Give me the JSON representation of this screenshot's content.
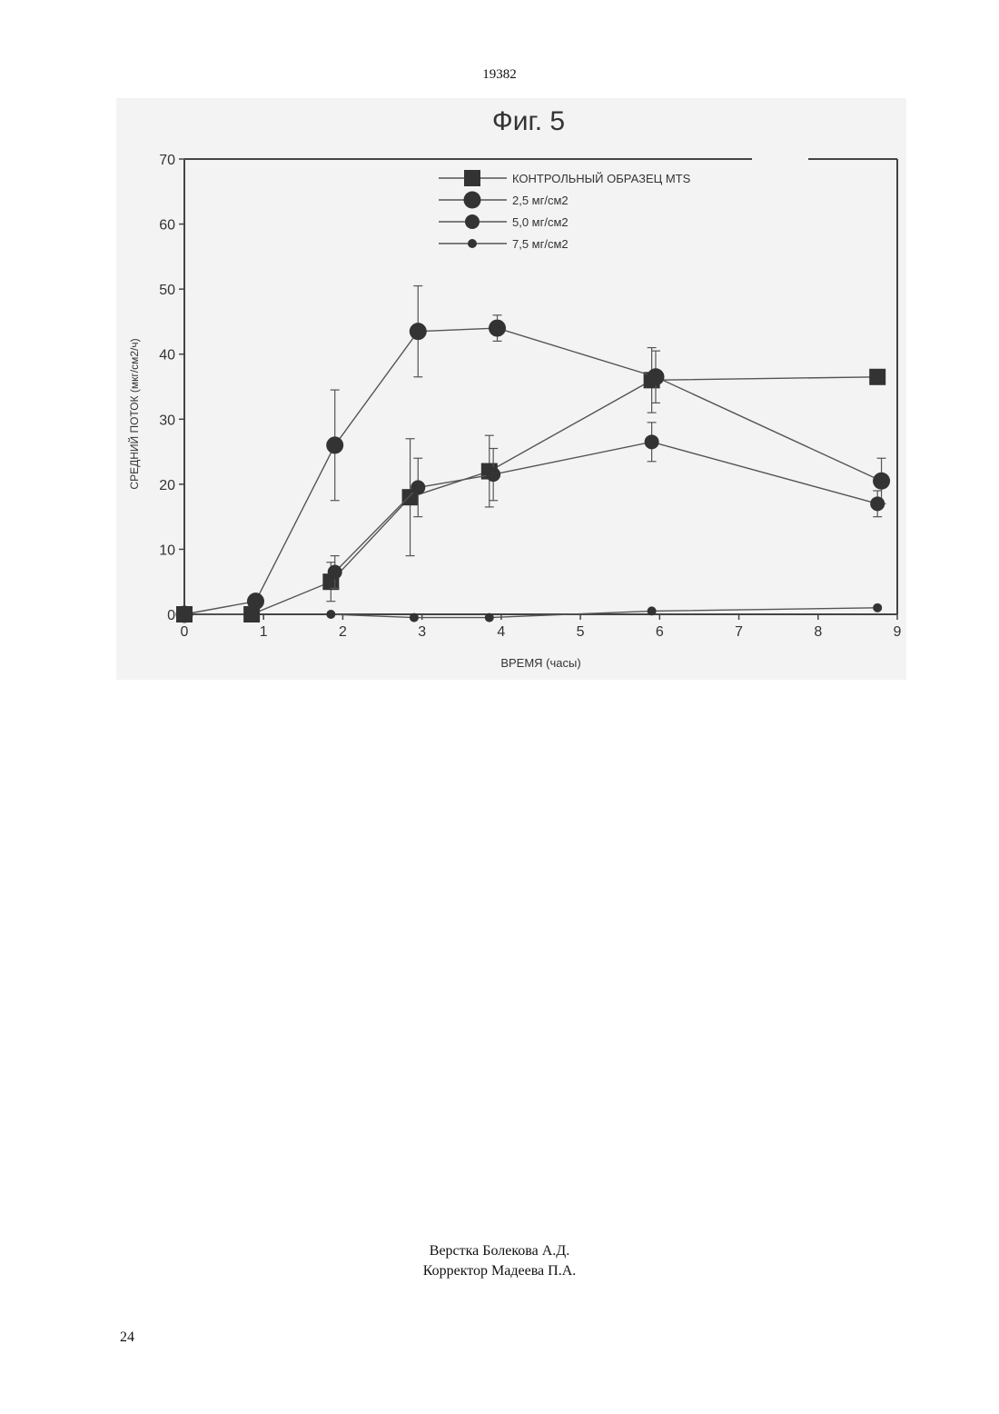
{
  "document": {
    "page_header": "19382",
    "figure_title": "Фиг. 5",
    "credits": [
      "Верстка Болекова А.Д.",
      "Корректор Мадеева П.А."
    ],
    "page_number": "24"
  },
  "chart_data": {
    "type": "line",
    "title": "Фиг. 5",
    "xlabel": "ВРЕМЯ (часы)",
    "ylabel": "СРЕДНИЙ ПОТОК (мкг/см2/ч)",
    "xlim": [
      0,
      9
    ],
    "ylim": [
      0,
      70
    ],
    "xticks": [
      0,
      1,
      2,
      3,
      4,
      5,
      6,
      7,
      8,
      9
    ],
    "yticks": [
      0,
      10,
      20,
      30,
      40,
      50,
      60,
      70
    ],
    "grid": false,
    "legend_position": "top-center",
    "series": [
      {
        "name": "КОНТРОЛЬНЫЙ ОБРАЗЕЦ MTS",
        "marker": "square",
        "x": [
          0,
          0.85,
          1.85,
          2.85,
          3.85,
          5.9,
          8.75
        ],
        "y": [
          0,
          0,
          5,
          18,
          22,
          36,
          36.5
        ],
        "error": [
          0,
          0,
          3,
          9,
          5.5,
          5,
          0
        ]
      },
      {
        "name": "2,5 мг/см2",
        "marker": "circle-large",
        "x": [
          0,
          0.9,
          1.9,
          2.95,
          3.95,
          5.95,
          8.8
        ],
        "y": [
          0,
          2,
          26,
          43.5,
          44,
          36.5,
          20.5
        ],
        "error": [
          0,
          1,
          8.5,
          7,
          2,
          4,
          3.5
        ]
      },
      {
        "name": "5,0 мг/см2",
        "marker": "circle-medium",
        "x": [
          1.9,
          2.95,
          3.9,
          5.9,
          8.75
        ],
        "y": [
          6.5,
          19.5,
          21.5,
          26.5,
          17
        ],
        "error": [
          2.5,
          4.5,
          4,
          3,
          2
        ]
      },
      {
        "name": "7,5 мг/см2",
        "marker": "circle-small",
        "x": [
          1.85,
          2.9,
          3.85,
          5.9,
          8.75
        ],
        "y": [
          0,
          -0.5,
          -0.5,
          0.5,
          1
        ],
        "error": [
          0,
          0,
          0,
          0,
          0
        ]
      }
    ]
  }
}
